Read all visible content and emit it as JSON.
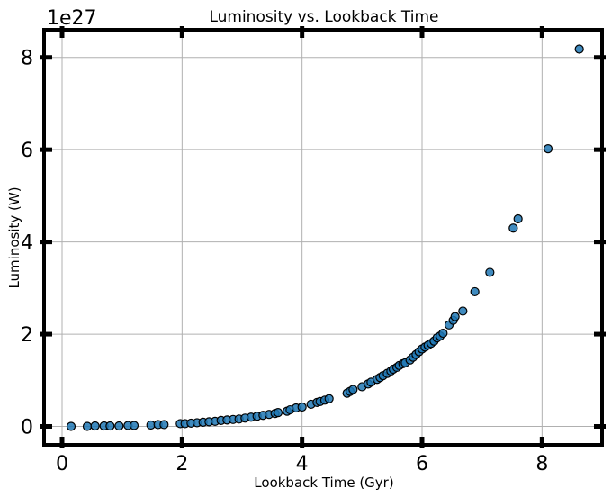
{
  "chart_data": {
    "type": "scatter",
    "title": "Luminosity vs. Lookback Time",
    "xlabel": "Lookback Time (Gyr)",
    "ylabel": "Luminosity (W)",
    "y_offset_label": "1e27",
    "xlim": [
      -0.3,
      9.0
    ],
    "ylim": [
      -0.4,
      8.6
    ],
    "xticks": [
      0,
      2,
      4,
      6,
      8
    ],
    "xtick_labels": [
      "0",
      "2",
      "4",
      "6",
      "8"
    ],
    "yticks": [
      0,
      2,
      4,
      6,
      8
    ],
    "ytick_labels": [
      "0",
      "2",
      "4",
      "6",
      "8"
    ],
    "grid": true,
    "marker_color": "#1f77b4",
    "marker_edge_color": "#000000",
    "points": [
      [
        0.15,
        0.0
      ],
      [
        0.42,
        0.0
      ],
      [
        0.55,
        0.01
      ],
      [
        0.7,
        0.01
      ],
      [
        0.8,
        0.01
      ],
      [
        0.95,
        0.01
      ],
      [
        1.1,
        0.02
      ],
      [
        1.2,
        0.02
      ],
      [
        1.48,
        0.03
      ],
      [
        1.6,
        0.04
      ],
      [
        1.7,
        0.04
      ],
      [
        1.97,
        0.06
      ],
      [
        2.05,
        0.06
      ],
      [
        2.15,
        0.07
      ],
      [
        2.25,
        0.08
      ],
      [
        2.35,
        0.09
      ],
      [
        2.45,
        0.1
      ],
      [
        2.55,
        0.11
      ],
      [
        2.65,
        0.13
      ],
      [
        2.75,
        0.14
      ],
      [
        2.85,
        0.15
      ],
      [
        2.95,
        0.16
      ],
      [
        3.05,
        0.18
      ],
      [
        3.15,
        0.2
      ],
      [
        3.25,
        0.22
      ],
      [
        3.35,
        0.24
      ],
      [
        3.45,
        0.26
      ],
      [
        3.55,
        0.28
      ],
      [
        3.6,
        0.3
      ],
      [
        3.75,
        0.33
      ],
      [
        3.8,
        0.36
      ],
      [
        3.9,
        0.4
      ],
      [
        4.0,
        0.42
      ],
      [
        4.15,
        0.48
      ],
      [
        4.25,
        0.52
      ],
      [
        4.3,
        0.54
      ],
      [
        4.38,
        0.57
      ],
      [
        4.45,
        0.6
      ],
      [
        4.75,
        0.72
      ],
      [
        4.8,
        0.76
      ],
      [
        4.85,
        0.8
      ],
      [
        5.0,
        0.86
      ],
      [
        5.1,
        0.92
      ],
      [
        5.15,
        0.96
      ],
      [
        5.25,
        1.02
      ],
      [
        5.3,
        1.06
      ],
      [
        5.35,
        1.1
      ],
      [
        5.42,
        1.15
      ],
      [
        5.48,
        1.2
      ],
      [
        5.52,
        1.24
      ],
      [
        5.58,
        1.28
      ],
      [
        5.62,
        1.32
      ],
      [
        5.68,
        1.36
      ],
      [
        5.72,
        1.38
      ],
      [
        5.8,
        1.44
      ],
      [
        5.85,
        1.5
      ],
      [
        5.9,
        1.56
      ],
      [
        5.95,
        1.62
      ],
      [
        6.0,
        1.68
      ],
      [
        6.05,
        1.72
      ],
      [
        6.1,
        1.76
      ],
      [
        6.15,
        1.8
      ],
      [
        6.2,
        1.85
      ],
      [
        6.25,
        1.92
      ],
      [
        6.3,
        1.96
      ],
      [
        6.35,
        2.02
      ],
      [
        6.45,
        2.2
      ],
      [
        6.52,
        2.3
      ],
      [
        6.55,
        2.38
      ],
      [
        6.68,
        2.5
      ],
      [
        6.88,
        2.92
      ],
      [
        7.13,
        3.34
      ],
      [
        7.52,
        4.3
      ],
      [
        7.6,
        4.5
      ],
      [
        8.1,
        6.02
      ],
      [
        8.62,
        8.18
      ]
    ]
  }
}
